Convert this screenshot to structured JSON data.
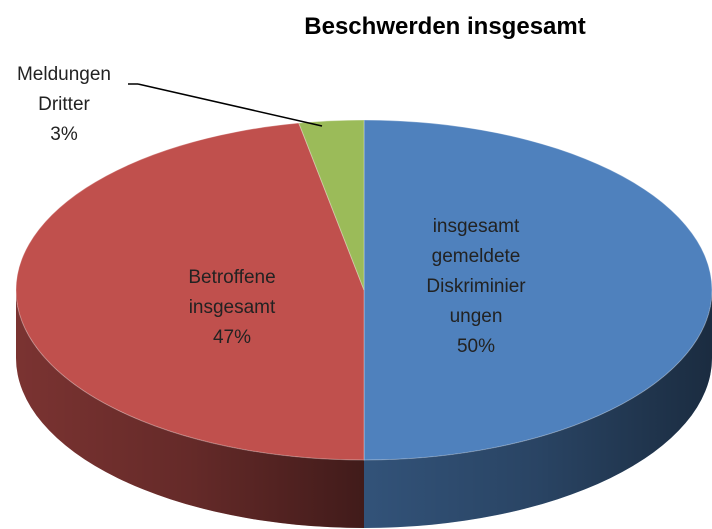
{
  "chart_data": {
    "type": "pie3d",
    "title": "Beschwerden insgesamt",
    "categories": [
      "insgesamt gemeldete Diskriminier ungen",
      "Betroffene insgesamt",
      "Meldungen Dritter"
    ],
    "values": [
      50,
      47,
      3
    ],
    "value_labels": [
      "50%",
      "47%",
      "3%"
    ],
    "colors": [
      "#4f81bd",
      "#c0504d",
      "#9bbb59"
    ]
  }
}
